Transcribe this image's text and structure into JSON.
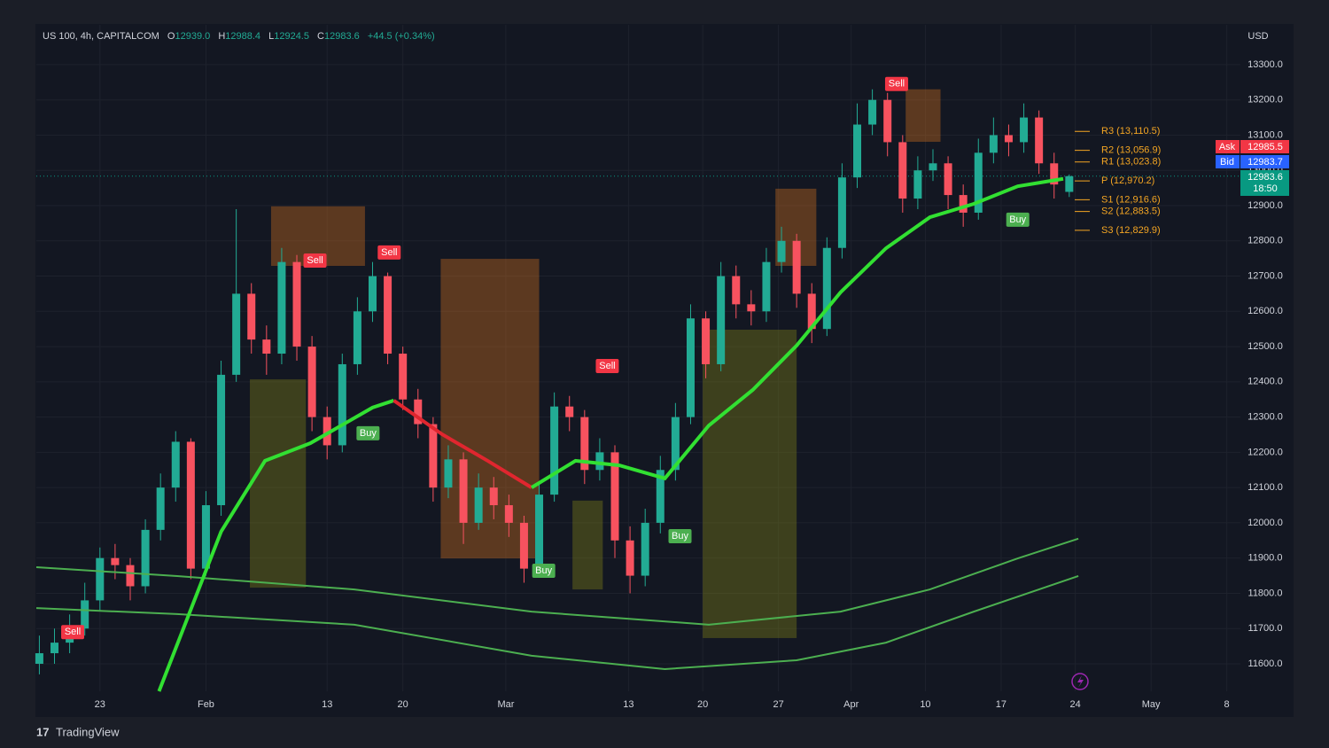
{
  "chart_data": {
    "type": "candlestick",
    "title": "US 100, 4h, CAPITALCOM",
    "ohlc_labels": {
      "open_label": "O",
      "open": "12939.0",
      "high_label": "H",
      "high": "12988.4",
      "low_label": "L",
      "low": "12924.5",
      "close_label": "C",
      "close": "12983.6",
      "change": "+44.5 (+0.34%)"
    },
    "currency": "USD",
    "up_color": "#22ab94",
    "down_color": "#f7525f",
    "x": [
      -4,
      -3,
      -2,
      -1,
      0,
      1,
      2,
      3,
      4,
      5,
      6,
      7,
      8,
      9,
      10,
      11,
      12,
      13,
      14,
      15,
      16,
      17,
      18,
      19,
      20,
      21,
      22,
      23,
      24,
      25,
      26,
      27,
      28,
      29,
      30,
      31,
      32,
      33,
      34,
      35,
      36,
      37,
      38,
      39,
      40,
      41,
      42,
      43,
      44,
      45,
      46,
      47,
      48,
      49,
      50,
      51,
      52,
      53,
      54,
      55,
      56,
      57,
      58,
      59,
      60,
      61,
      62,
      63,
      64
    ],
    "open": [
      11600,
      11630,
      11660,
      11700,
      11780,
      11900,
      11880,
      11820,
      11980,
      12100,
      12230,
      11870,
      12050,
      12420,
      12650,
      12520,
      12480,
      12740,
      12500,
      12300,
      12220,
      12450,
      12600,
      12700,
      12480,
      12350,
      12280,
      12100,
      12180,
      12000,
      12100,
      12050,
      12000,
      11870,
      12080,
      12330,
      12300,
      12150,
      12200,
      11950,
      11850,
      12000,
      12150,
      12300,
      12580,
      12450,
      12700,
      12620,
      12600,
      12740,
      12800,
      12650,
      12550,
      12780,
      12980,
      13130,
      13200,
      13080,
      12920,
      13000,
      13020,
      12930,
      12880,
      13050,
      13100,
      13080,
      13150,
      13020,
      12939
    ],
    "high": [
      11680,
      11700,
      11740,
      11830,
      11930,
      11940,
      11900,
      12010,
      12140,
      12260,
      12240,
      12090,
      12460,
      12890,
      12680,
      12560,
      12780,
      12760,
      12530,
      12330,
      12480,
      12640,
      12740,
      12710,
      12500,
      12380,
      12300,
      12220,
      12200,
      12140,
      12130,
      12080,
      12020,
      12110,
      12370,
      12360,
      12320,
      12240,
      12220,
      11990,
      12040,
      12190,
      12340,
      12620,
      12600,
      12740,
      12730,
      12660,
      12780,
      12840,
      12820,
      12680,
      12810,
      13020,
      13190,
      13230,
      13220,
      13100,
      13040,
      13060,
      13040,
      12960,
      13090,
      13150,
      13130,
      13190,
      13170,
      13050,
      12988.4
    ],
    "low": [
      11570,
      11600,
      11630,
      11680,
      11750,
      11840,
      11780,
      11800,
      11950,
      12060,
      11840,
      11850,
      12020,
      12400,
      12480,
      12420,
      12450,
      12460,
      12260,
      12180,
      12200,
      12420,
      12570,
      12450,
      12320,
      12240,
      12060,
      12070,
      11940,
      11980,
      12010,
      11960,
      11830,
      11850,
      12060,
      12260,
      12110,
      12120,
      11900,
      11800,
      11820,
      11970,
      12120,
      12280,
      12410,
      12430,
      12580,
      12560,
      12570,
      12710,
      12610,
      12510,
      12530,
      12750,
      12950,
      13100,
      13040,
      12880,
      12890,
      12970,
      12890,
      12840,
      12860,
      13020,
      13040,
      13050,
      12990,
      12920,
      12924.5
    ],
    "close": [
      11630,
      11660,
      11700,
      11780,
      11900,
      11880,
      11820,
      11980,
      12100,
      12230,
      11870,
      12050,
      12420,
      12650,
      12520,
      12480,
      12740,
      12500,
      12300,
      12220,
      12450,
      12600,
      12700,
      12480,
      12350,
      12280,
      12100,
      12180,
      12000,
      12100,
      12050,
      12000,
      11870,
      12080,
      12330,
      12300,
      12150,
      12200,
      11950,
      11850,
      12000,
      12150,
      12300,
      12580,
      12450,
      12700,
      12620,
      12600,
      12740,
      12800,
      12650,
      12550,
      12780,
      12980,
      13130,
      13200,
      13080,
      12920,
      13000,
      13020,
      12930,
      12880,
      13050,
      13100,
      13080,
      13150,
      13020,
      12960,
      12983.6
    ],
    "xlim": [
      -4.2,
      75.3
    ],
    "xticks": [
      {
        "value": 0,
        "label": "23"
      },
      {
        "value": 7,
        "label": "Feb"
      },
      {
        "value": 15,
        "label": "13"
      },
      {
        "value": 20,
        "label": "20"
      },
      {
        "value": 26.8,
        "label": "Mar"
      },
      {
        "value": 34.9,
        "label": "13"
      },
      {
        "value": 39.8,
        "label": "20"
      },
      {
        "value": 44.8,
        "label": "27"
      },
      {
        "value": 49.6,
        "label": "Apr"
      },
      {
        "value": 54.5,
        "label": "10"
      },
      {
        "value": 59.5,
        "label": "17"
      },
      {
        "value": 64.4,
        "label": "24"
      },
      {
        "value": 69.4,
        "label": "May"
      },
      {
        "value": 74.4,
        "label": "8"
      }
    ],
    "ylim": [
      11522,
      13413
    ],
    "yticks": [
      {
        "value": 13300,
        "label": "13300.0"
      },
      {
        "value": 13200,
        "label": "13200.0"
      },
      {
        "value": 13100,
        "label": "13100.0"
      },
      {
        "value": 13000,
        "label": "13000.0"
      },
      {
        "value": 12900,
        "label": "12900.0"
      },
      {
        "value": 12800,
        "label": "12800.0"
      },
      {
        "value": 12700,
        "label": "12700.0"
      },
      {
        "value": 12600,
        "label": "12600.0"
      },
      {
        "value": 12500,
        "label": "12500.0"
      },
      {
        "value": 12400,
        "label": "12400.0"
      },
      {
        "value": 12300,
        "label": "12300.0"
      },
      {
        "value": 12200,
        "label": "12200.0"
      },
      {
        "value": 12100,
        "label": "12100.0"
      },
      {
        "value": 12000,
        "label": "12000.0"
      },
      {
        "value": 11900,
        "label": "11900.0"
      },
      {
        "value": 11800,
        "label": "11800.0"
      },
      {
        "value": 11700,
        "label": "11700.0"
      },
      {
        "value": 11600,
        "label": "11600.0"
      }
    ],
    "grid": true,
    "lines": [
      {
        "color": "#4caf50",
        "width": 2,
        "x": [
          -4.2,
          5.1,
          16.8,
          28.5,
          40.2,
          48.9,
          54.8,
          60.6,
          64.6
        ],
        "values": [
          11874,
          11849,
          11811,
          11748,
          11711,
          11748,
          11811,
          11899,
          11955
        ]
      },
      {
        "color": "#4caf50",
        "width": 2,
        "x": [
          -4.2,
          5.1,
          16.8,
          28.5,
          37.3,
          46.0,
          51.9,
          57.7,
          64.6
        ],
        "values": [
          11758,
          11741,
          11711,
          11623,
          11585,
          11610,
          11660,
          11748,
          11849
        ]
      },
      {
        "color": "#32e032",
        "width": 4,
        "x": [
          3.9,
          8.0,
          10.9,
          13.9,
          18.0,
          19.4
        ],
        "values": [
          11522,
          11975,
          12176,
          12226,
          12327,
          12347
        ]
      },
      {
        "color": "#e0262f",
        "width": 4,
        "x": [
          19.4,
          22.6,
          25.6,
          28.5
        ],
        "values": [
          12347,
          12251,
          12176,
          12100
        ]
      },
      {
        "color": "#32e032",
        "width": 4,
        "x": [
          28.5,
          31.4,
          34.3,
          37.3,
          40.2,
          43.1,
          46.0,
          48.9,
          51.9,
          54.8,
          57.7,
          60.6,
          63.6
        ],
        "values": [
          12100,
          12176,
          12163,
          12126,
          12276,
          12377,
          12503,
          12654,
          12779,
          12867,
          12905,
          12955,
          12976
        ]
      }
    ],
    "zones": [
      {
        "color": "rgba(230,120,30,0.35)",
        "x": [
          11.3,
          17.5
        ],
        "values": [
          12898,
          12729
        ]
      },
      {
        "color": "rgba(230,120,30,0.35)",
        "x": [
          22.5,
          29.0
        ],
        "values": [
          12749,
          11899
        ]
      },
      {
        "color": "rgba(140,140,20,0.35)",
        "x": [
          9.9,
          13.6
        ],
        "values": [
          12407,
          11816
        ]
      },
      {
        "color": "rgba(140,140,20,0.35)",
        "x": [
          39.8,
          46.0
        ],
        "values": [
          12548,
          11673
        ]
      },
      {
        "color": "rgba(230,120,30,0.35)",
        "x": [
          44.6,
          47.3
        ],
        "values": [
          12948,
          12729
        ]
      },
      {
        "color": "rgba(230,120,30,0.35)",
        "x": [
          53.2,
          55.5
        ],
        "values": [
          13230,
          13081
        ]
      },
      {
        "color": "rgba(140,140,20,0.35)",
        "x": [
          31.2,
          33.2
        ],
        "values": [
          12063,
          11811
        ]
      }
    ],
    "pivot_color": "#f5a623",
    "pivots": [
      {
        "label": "R3 (13,110.5)",
        "value": 13110.5
      },
      {
        "label": "R2 (13,056.9)",
        "value": 13056.9
      },
      {
        "label": "R1 (13,023.8)",
        "value": 13023.8
      },
      {
        "label": "P (12,970.2)",
        "value": 12970.2
      },
      {
        "label": "S1 (12,916.6)",
        "value": 12916.6
      },
      {
        "label": "S2 (12,883.5)",
        "value": 12883.5
      },
      {
        "label": "S3 (12,829.9)",
        "value": 12829.9
      }
    ],
    "signals": [
      {
        "label": "Sell",
        "x": -1.8,
        "value": 11690,
        "color": "#f23645"
      },
      {
        "label": "Sell",
        "x": 14.2,
        "value": 12744,
        "color": "#f23645"
      },
      {
        "label": "Sell",
        "x": 19.1,
        "value": 12767,
        "color": "#f23645"
      },
      {
        "label": "Sell",
        "x": 33.5,
        "value": 12445,
        "color": "#f23645"
      },
      {
        "label": "Sell",
        "x": 52.6,
        "value": 13245,
        "color": "#f23645"
      },
      {
        "label": "Buy",
        "x": 17.7,
        "value": 12254,
        "color": "#4caf50"
      },
      {
        "label": "Buy",
        "x": 29.3,
        "value": 11864,
        "color": "#4caf50"
      },
      {
        "label": "Buy",
        "x": 38.3,
        "value": 11962,
        "color": "#4caf50"
      },
      {
        "label": "Buy",
        "x": 60.6,
        "value": 12860,
        "color": "#4caf50"
      }
    ],
    "price_tags": {
      "ask_label": "Ask",
      "ask": 12985.5,
      "bid_label": "Bid",
      "bid": 12983.7,
      "last": 12983.6,
      "countdown": "18:50"
    }
  },
  "footer": {
    "brand": "TradingView"
  }
}
